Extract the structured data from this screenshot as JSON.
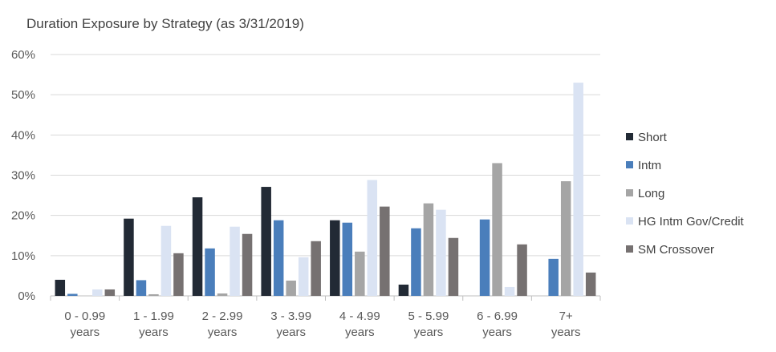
{
  "chart_data": {
    "type": "bar",
    "title": "Duration Exposure by Strategy (as 3/31/2019)",
    "xlabel": "",
    "ylabel": "",
    "ylim": [
      0,
      60
    ],
    "y_ticks": [
      "0%",
      "10%",
      "20%",
      "30%",
      "40%",
      "50%",
      "60%"
    ],
    "y_tick_values": [
      0,
      10,
      20,
      30,
      40,
      50,
      60
    ],
    "grid": "horizontal",
    "legend_position": "right",
    "categories": [
      [
        "0 - 0.99",
        "years"
      ],
      [
        "1 - 1.99",
        "years"
      ],
      [
        "2 - 2.99",
        "years"
      ],
      [
        "3 - 3.99",
        "years"
      ],
      [
        "4 - 4.99",
        "years"
      ],
      [
        "5 - 5.99",
        "years"
      ],
      [
        "6 - 6.99",
        "years"
      ],
      [
        "7+",
        "years"
      ]
    ],
    "series": [
      {
        "name": "Short",
        "color": "#222a35",
        "values": [
          4.0,
          19.2,
          24.5,
          27.1,
          18.8,
          2.8,
          0,
          0
        ]
      },
      {
        "name": "Intm",
        "color": "#4a7ebb",
        "values": [
          0.5,
          3.9,
          11.8,
          18.8,
          18.2,
          16.8,
          19.0,
          9.2
        ]
      },
      {
        "name": "Long",
        "color": "#a5a5a5",
        "values": [
          0,
          0.4,
          0.6,
          3.8,
          11.0,
          23.0,
          33.0,
          28.5
        ]
      },
      {
        "name": "HG Intm Gov/Credit",
        "color": "#dae3f3",
        "values": [
          1.6,
          17.4,
          17.2,
          9.6,
          28.8,
          21.4,
          2.2,
          53.0
        ]
      },
      {
        "name": "SM Crossover",
        "color": "#767171",
        "values": [
          1.6,
          10.6,
          15.4,
          13.6,
          22.2,
          14.4,
          12.8,
          5.8
        ]
      }
    ]
  }
}
